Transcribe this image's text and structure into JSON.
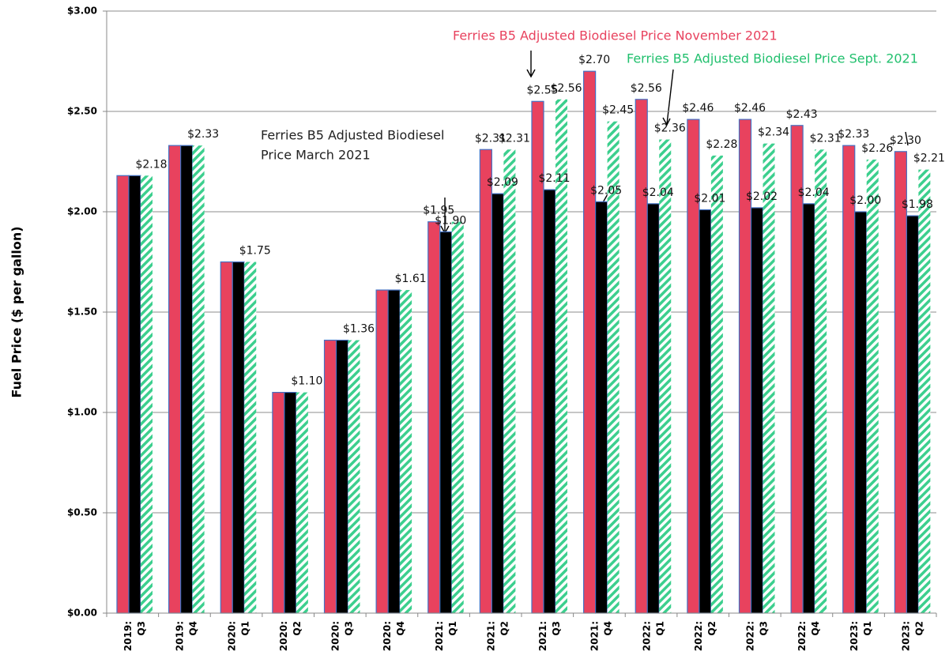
{
  "chart_data": {
    "type": "bar",
    "y_axis_label": "Fuel Price ($ per gallon)",
    "categories": [
      [
        "2019:",
        "Q3"
      ],
      [
        "2019:",
        "Q4"
      ],
      [
        "2020:",
        "Q1"
      ],
      [
        "2020:",
        "Q2"
      ],
      [
        "2020:",
        "Q3"
      ],
      [
        "2020:",
        "Q4"
      ],
      [
        "2021:",
        "Q1"
      ],
      [
        "2021:",
        "Q2"
      ],
      [
        "2021:",
        "Q3"
      ],
      [
        "2021:",
        "Q4"
      ],
      [
        "2022:",
        "Q1"
      ],
      [
        "2022:",
        "Q2"
      ],
      [
        "2022:",
        "Q3"
      ],
      [
        "2022:",
        "Q4"
      ],
      [
        "2023:",
        "Q1"
      ],
      [
        "2023:",
        "Q2"
      ]
    ],
    "series": [
      {
        "color": "#e8425e",
        "pattern": "solid",
        "values": [
          2.18,
          2.33,
          1.75,
          1.1,
          1.36,
          1.61,
          1.95,
          2.31,
          2.55,
          2.7,
          2.56,
          2.46,
          2.46,
          2.43,
          2.33,
          2.3
        ],
        "value_labels": [
          null,
          null,
          null,
          null,
          null,
          null,
          "$1.95",
          "$2.31",
          "$2.55",
          "$2.70",
          "$2.56",
          "$2.46",
          "$2.46",
          "$2.43",
          "$2.33",
          "$2.30"
        ]
      },
      {
        "color": "#000000",
        "pattern": "solid",
        "values": [
          2.18,
          2.33,
          1.75,
          1.1,
          1.36,
          1.61,
          1.9,
          2.09,
          2.11,
          2.05,
          2.04,
          2.01,
          2.02,
          2.04,
          2.0,
          1.98
        ],
        "value_labels": [
          null,
          null,
          null,
          null,
          null,
          null,
          "$1.90",
          "$2.09",
          "$2.11",
          "$2.05",
          "$2.04",
          "$2.01",
          "$2.02",
          "$2.04",
          "$2.00",
          "$1.98"
        ]
      },
      {
        "color": "#3ccf8e",
        "pattern": "hatch",
        "values": [
          2.18,
          2.33,
          1.75,
          1.1,
          1.36,
          1.61,
          1.95,
          2.31,
          2.56,
          2.45,
          2.36,
          2.28,
          2.34,
          2.31,
          2.26,
          2.21
        ],
        "value_labels": [
          "$2.18",
          "$2.33",
          "$1.75",
          "$1.10",
          "$1.36",
          "$1.61",
          null,
          "$2.31",
          "$2.56",
          "$2.45",
          "$2.36",
          "$2.28",
          "$2.34",
          "$2.31",
          "$2.26",
          "$2.21"
        ]
      }
    ],
    "annotations": [
      {
        "lines": [
          "Ferries B5 Adjusted Biodiesel Price November 2021"
        ],
        "color": "#e8425e"
      },
      {
        "lines": [
          "Ferries B5 Adjusted Biodiesel Price Sept. 2021"
        ],
        "color": "#22c06e"
      },
      {
        "lines": [
          "Ferries B5 Adjusted Biodiesel",
          "Price March 2021"
        ],
        "color": "#222222"
      }
    ],
    "ylim": [
      0,
      3
    ],
    "yticks": [
      {
        "value": 0,
        "label": "$0.00"
      },
      {
        "value": 0.5,
        "label": "$0.50"
      },
      {
        "value": 1,
        "label": "$1.00"
      },
      {
        "value": 1.5,
        "label": "$1.50"
      },
      {
        "value": 2,
        "label": "$2.00"
      },
      {
        "value": 2.5,
        "label": "$2.50"
      },
      {
        "value": 3,
        "label": "$3.00"
      }
    ],
    "grid": true
  }
}
